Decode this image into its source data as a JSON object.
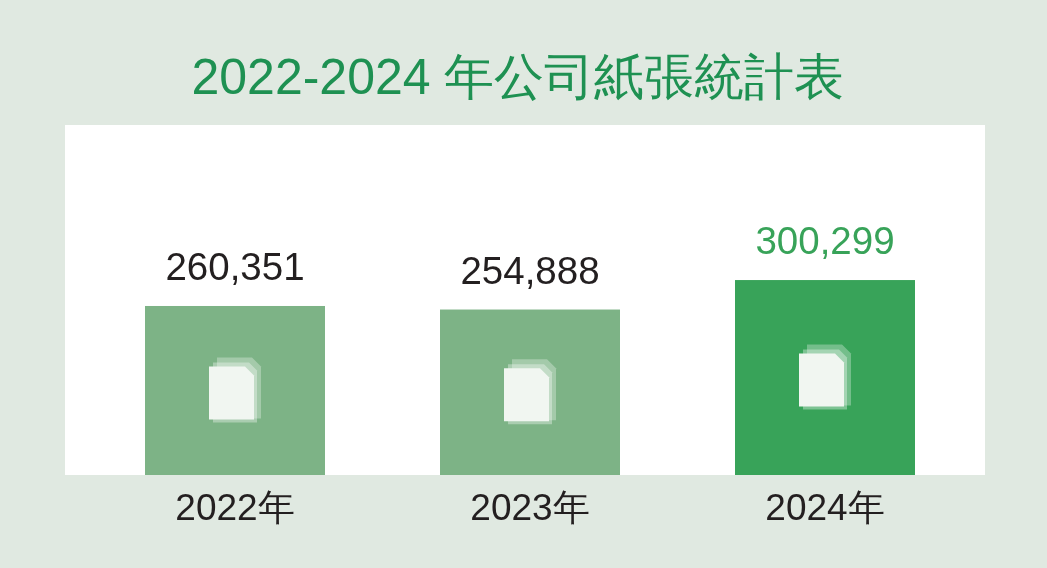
{
  "chart_data": {
    "type": "bar",
    "title": "2022-2024 年公司紙張統計表",
    "categories": [
      "2022年",
      "2023年",
      "2024年"
    ],
    "values": [
      260351,
      254888,
      300299
    ],
    "value_labels": [
      "260,351",
      "254,888",
      "300,299"
    ],
    "colors": [
      "#7db386",
      "#7db386",
      "#38a359"
    ]
  }
}
